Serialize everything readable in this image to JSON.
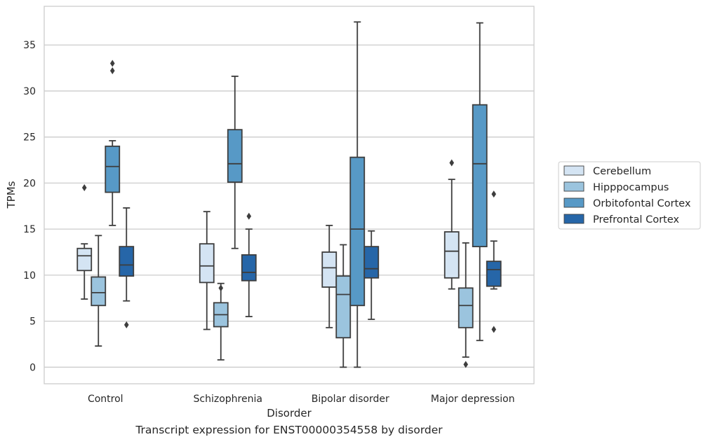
{
  "caption": "Transcript expression for ENST00000354558 by disorder",
  "chart_data": {
    "type": "box",
    "title": "",
    "xlabel": "Disorder",
    "ylabel": "TPMs",
    "ylim": [
      -1.8,
      39.2
    ],
    "yticks": [
      0,
      5,
      10,
      15,
      20,
      25,
      30,
      35
    ],
    "grid": "horizontal",
    "legend_position": "right",
    "categories": [
      "Control",
      "Schizophrenia",
      "Bipolar disorder",
      "Major depression"
    ],
    "series": [
      {
        "name": "Cerebellum",
        "color": "#d4e4f3",
        "boxes": [
          {
            "whislo": 7.4,
            "q1": 10.5,
            "med": 12.1,
            "q3": 12.9,
            "whishi": 13.4,
            "fliers": [
              19.5
            ]
          },
          {
            "whislo": 4.1,
            "q1": 9.2,
            "med": 11.0,
            "q3": 13.4,
            "whishi": 16.9,
            "fliers": []
          },
          {
            "whislo": 4.3,
            "q1": 8.7,
            "med": 10.8,
            "q3": 12.5,
            "whishi": 15.4,
            "fliers": []
          },
          {
            "whislo": 8.5,
            "q1": 9.7,
            "med": 12.6,
            "q3": 14.7,
            "whishi": 20.4,
            "fliers": [
              22.2
            ]
          }
        ]
      },
      {
        "name": "Hipppocampus",
        "color": "#9bc4de",
        "boxes": [
          {
            "whislo": 2.3,
            "q1": 6.7,
            "med": 8.1,
            "q3": 9.8,
            "whishi": 14.3,
            "fliers": []
          },
          {
            "whislo": 0.8,
            "q1": 4.4,
            "med": 5.7,
            "q3": 7.0,
            "whishi": 9.1,
            "fliers": [
              8.6
            ]
          },
          {
            "whislo": 0.0,
            "q1": 3.2,
            "med": 7.9,
            "q3": 9.9,
            "whishi": 13.3,
            "fliers": []
          },
          {
            "whislo": 1.1,
            "q1": 4.3,
            "med": 6.7,
            "q3": 8.6,
            "whishi": 13.5,
            "fliers": [
              0.3
            ]
          }
        ]
      },
      {
        "name": "Orbitofontal Cortex",
        "color": "#5799c6",
        "boxes": [
          {
            "whislo": 15.4,
            "q1": 19.0,
            "med": 21.8,
            "q3": 24.0,
            "whishi": 24.6,
            "fliers": [
              32.2,
              33.0
            ]
          },
          {
            "whislo": 12.9,
            "q1": 20.1,
            "med": 22.1,
            "q3": 25.8,
            "whishi": 31.6,
            "fliers": []
          },
          {
            "whislo": 0.0,
            "q1": 6.7,
            "med": 15.0,
            "q3": 22.8,
            "whishi": 37.5,
            "fliers": []
          },
          {
            "whislo": 2.9,
            "q1": 13.1,
            "med": 22.1,
            "q3": 28.5,
            "whishi": 37.4,
            "fliers": []
          }
        ]
      },
      {
        "name": "Prefrontal Cortex",
        "color": "#2666a8",
        "boxes": [
          {
            "whislo": 7.2,
            "q1": 9.9,
            "med": 11.1,
            "q3": 13.1,
            "whishi": 17.3,
            "fliers": [
              4.6
            ]
          },
          {
            "whislo": 5.5,
            "q1": 9.4,
            "med": 10.3,
            "q3": 12.2,
            "whishi": 15.0,
            "fliers": [
              16.4
            ]
          },
          {
            "whislo": 5.2,
            "q1": 9.7,
            "med": 10.7,
            "q3": 13.1,
            "whishi": 14.8,
            "fliers": []
          },
          {
            "whislo": 8.5,
            "q1": 8.8,
            "med": 10.6,
            "q3": 11.5,
            "whishi": 13.7,
            "fliers": [
              4.1,
              18.8
            ]
          }
        ]
      }
    ]
  }
}
